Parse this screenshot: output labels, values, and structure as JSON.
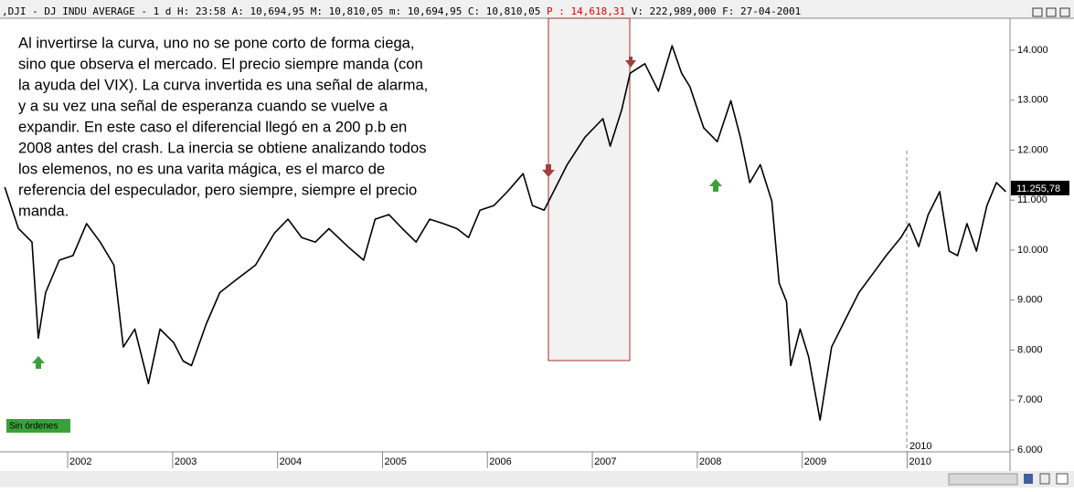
{
  "chart_data": {
    "type": "line",
    "header": [
      ",DJI - DJ INDU AVERAGE -  1 d H: 23:58 A: 10,694,95 M: 10,810,05 m: 10,694,95 C: 10,810,05",
      "P : 14,618,31",
      "V: 222,989,000 F: 27-04-2001"
    ],
    "annotation": [
      "Al invertirse la curva, uno no se pone corto de forma ciega,",
      "sino que observa el mercado. El precio siempre manda (con",
      "la ayuda del VIX). La curva invertida es una señal de alarma,",
      "y a su vez una señal de esperanza cuando se vuelve a",
      "expandir. En este caso el diferencial llegó en a 200 p.b en",
      "2008 antes del crash. La inercia se obtiene analizando todos",
      "los elemenos, no es una varita mágica, es el marco de",
      "referencia del especulador, pero siempre, siempre el precio",
      "manda."
    ],
    "last_price_label": "11.255,78",
    "cursor_label": "2010",
    "status_label": "Sin órdenes",
    "color": "#000000",
    "x": [
      2001.4,
      2001.53,
      2001.66,
      2001.72,
      2001.79,
      2001.92,
      2002.05,
      2002.18,
      2002.31,
      2002.44,
      2002.53,
      2002.64,
      2002.77,
      2002.88,
      2003.01,
      2003.1,
      2003.18,
      2003.32,
      2003.45,
      2003.62,
      2003.79,
      2003.97,
      2004.1,
      2004.23,
      2004.36,
      2004.49,
      2004.67,
      2004.82,
      2004.93,
      2005.06,
      2005.19,
      2005.32,
      2005.45,
      2005.58,
      2005.71,
      2005.82,
      2005.93,
      2006.06,
      2006.19,
      2006.34,
      2006.43,
      2006.54,
      2006.63,
      2006.76,
      2006.93,
      2007.1,
      2007.17,
      2007.28,
      2007.36,
      2007.5,
      2007.63,
      2007.76,
      2007.85,
      2007.93,
      2008.06,
      2008.19,
      2008.32,
      2008.41,
      2008.5,
      2008.6,
      2008.71,
      2008.78,
      2008.85,
      2008.89,
      2008.98,
      2009.06,
      2009.17,
      2009.28,
      2009.41,
      2009.54,
      2009.67,
      2009.8,
      2009.94,
      2010.02,
      2010.11,
      2010.2,
      2010.31,
      2010.4,
      2010.48,
      2010.57,
      2010.66,
      2010.76,
      2010.85,
      2010.94
    ],
    "values": [
      11260,
      10435,
      10160,
      8240,
      9150,
      9800,
      9890,
      10530,
      10160,
      9700,
      8060,
      8420,
      7330,
      8420,
      8150,
      7780,
      7690,
      8520,
      9150,
      9430,
      9700,
      10340,
      10620,
      10250,
      10160,
      10430,
      10070,
      9800,
      10620,
      10710,
      10430,
      10160,
      10620,
      10530,
      10430,
      10250,
      10800,
      10890,
      11170,
      11530,
      10890,
      10800,
      11170,
      11710,
      12260,
      12630,
      12080,
      12810,
      13540,
      13730,
      13180,
      14090,
      13540,
      13270,
      12450,
      12170,
      12990,
      12260,
      11350,
      11710,
      10980,
      9340,
      8970,
      7690,
      8420,
      7870,
      6600,
      8060,
      8610,
      9150,
      9520,
      9890,
      10250,
      10530,
      10070,
      10710,
      11170,
      9980,
      9890,
      10530,
      9980,
      10890,
      11350,
      11170
    ],
    "xlim": [
      2001.355,
      2010.98
    ],
    "xticks": [
      2002,
      2003,
      2004,
      2005,
      2006,
      2007,
      2008,
      2009,
      2010
    ],
    "ylim": [
      5963,
      14640
    ],
    "yticks": [
      {
        "value": 14000,
        "label": "14.000"
      },
      {
        "value": 13000,
        "label": "13.000"
      },
      {
        "value": 12000,
        "label": "12.000"
      },
      {
        "value": 11000,
        "label": "11.000"
      },
      {
        "value": 10000,
        "label": "10.000"
      },
      {
        "value": 9000,
        "label": "9.000"
      },
      {
        "value": 8000,
        "label": "8.000"
      },
      {
        "value": 7000,
        "label": "7.000"
      },
      {
        "value": 6000,
        "label": "6.000"
      }
    ]
  }
}
